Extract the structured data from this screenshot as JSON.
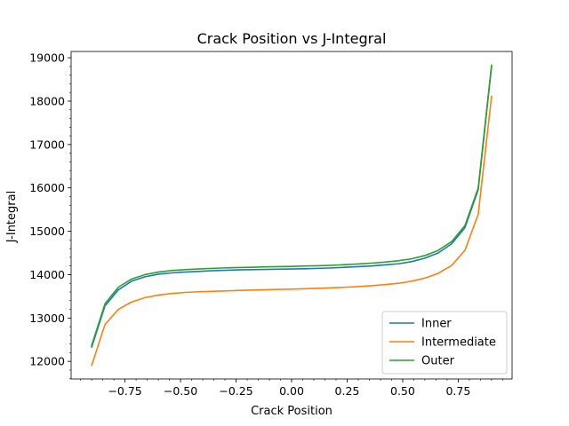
{
  "chart_data": {
    "type": "line",
    "title": "Crack Position vs J-Integral",
    "xlabel": "Crack Position",
    "ylabel": "J-Integral",
    "xlim": [
      -0.9925,
      0.9925
    ],
    "ylim": [
      11595,
      19145
    ],
    "x_ticks": [
      -0.75,
      -0.5,
      -0.25,
      0.0,
      0.25,
      0.5,
      0.75
    ],
    "x_tick_labels": [
      "−0.75",
      "−0.50",
      "−0.25",
      "0.00",
      "0.25",
      "0.50",
      "0.75"
    ],
    "y_ticks": [
      12000,
      13000,
      14000,
      15000,
      16000,
      17000,
      18000,
      19000
    ],
    "y_tick_labels": [
      "12000",
      "13000",
      "14000",
      "15000",
      "16000",
      "17000",
      "18000",
      "19000"
    ],
    "x_minor_step": 0.05,
    "y_minor_step": 200,
    "grid": false,
    "legend_position": "bottom-right",
    "x": [
      -0.9,
      -0.84,
      -0.78,
      -0.72,
      -0.66,
      -0.6,
      -0.54,
      -0.48,
      -0.42,
      -0.36,
      -0.3,
      -0.24,
      -0.18,
      -0.12,
      -0.06,
      0.0,
      0.06,
      0.12,
      0.18,
      0.24,
      0.3,
      0.36,
      0.42,
      0.48,
      0.54,
      0.6,
      0.66,
      0.72,
      0.78,
      0.84,
      0.9
    ],
    "series": [
      {
        "name": "Inner",
        "color": "#1f77b4",
        "values": [
          12330,
          13280,
          13650,
          13850,
          13950,
          14010,
          14040,
          14060,
          14075,
          14090,
          14100,
          14110,
          14115,
          14120,
          14125,
          14130,
          14135,
          14145,
          14155,
          14170,
          14185,
          14200,
          14225,
          14250,
          14300,
          14380,
          14500,
          14710,
          15080,
          15960,
          18800
        ]
      },
      {
        "name": "Intermediate",
        "color": "#ff7f0e",
        "values": [
          11910,
          12850,
          13200,
          13370,
          13470,
          13530,
          13565,
          13590,
          13605,
          13615,
          13625,
          13635,
          13645,
          13650,
          13660,
          13665,
          13675,
          13685,
          13695,
          13710,
          13725,
          13745,
          13770,
          13800,
          13850,
          13920,
          14030,
          14210,
          14560,
          15390,
          18110
        ]
      },
      {
        "name": "Outer",
        "color": "#2ca02c",
        "values": [
          12370,
          13330,
          13710,
          13900,
          14000,
          14060,
          14095,
          14115,
          14130,
          14145,
          14155,
          14165,
          14170,
          14180,
          14185,
          14190,
          14200,
          14205,
          14215,
          14230,
          14245,
          14265,
          14290,
          14320,
          14365,
          14440,
          14560,
          14760,
          15130,
          16000,
          18830
        ]
      }
    ]
  }
}
